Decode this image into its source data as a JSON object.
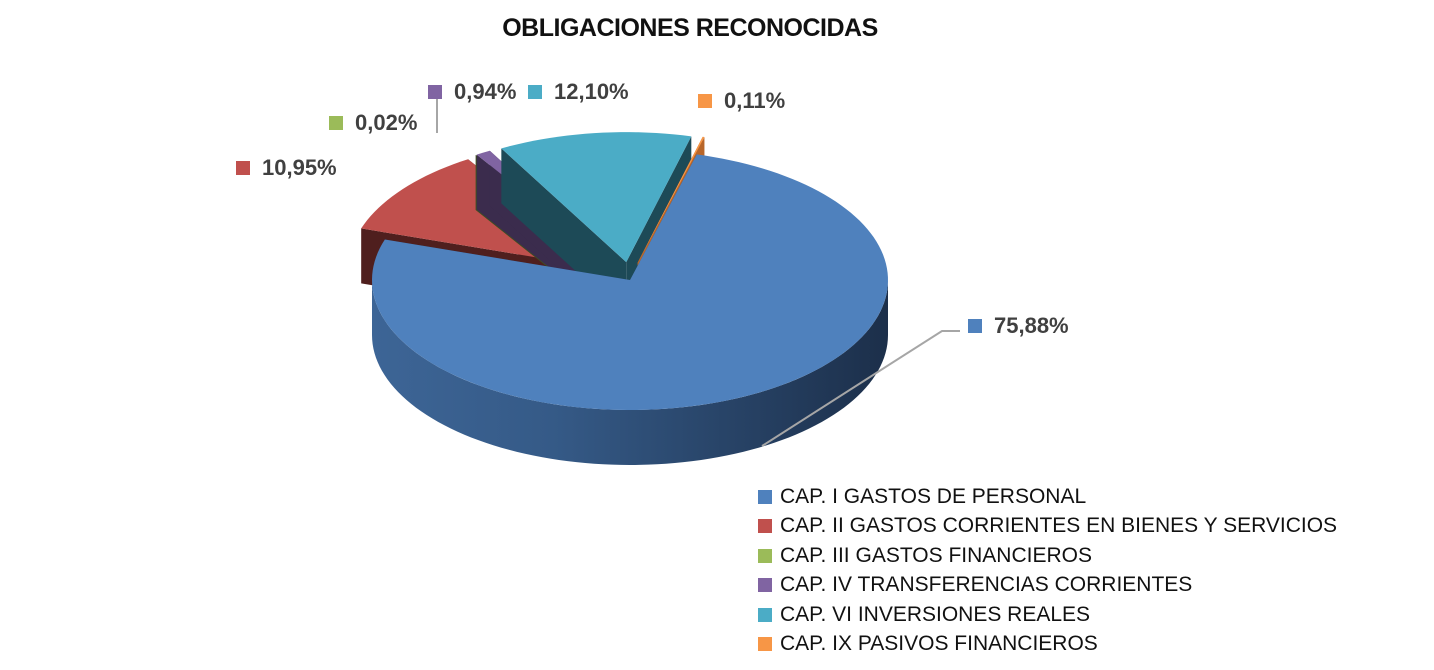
{
  "chart_data": {
    "type": "pie",
    "style": "3d-exploded",
    "title": "OBLIGACIONES RECONOCIDAS",
    "legend_position": "bottom-right",
    "slices": [
      {
        "label": "CAP. I GASTOS DE PERSONAL",
        "value": 75.88,
        "display": "75,88%",
        "color": "#4f81bd",
        "dark": "#243a5c"
      },
      {
        "label": "CAP. II GASTOS CORRIENTES EN BIENES Y SERVICIOS",
        "value": 10.95,
        "display": "10,95%",
        "color": "#c0504d",
        "dark": "#4f1f1e"
      },
      {
        "label": "CAP. III GASTOS FINANCIEROS",
        "value": 0.02,
        "display": "0,02%",
        "color": "#9bbb59",
        "dark": "#3e4f22"
      },
      {
        "label": "CAP. IV TRANSFERENCIAS CORRIENTES",
        "value": 0.94,
        "display": "0,94%",
        "color": "#8064a2",
        "dark": "#3b2c4d"
      },
      {
        "label": "CAP. VI INVERSIONES REALES",
        "value": 12.1,
        "display": "12,10%",
        "color": "#4bacc6",
        "dark": "#1d4a57"
      },
      {
        "label": "CAP. IX PASIVOS FINANCIEROS",
        "value": 0.11,
        "display": "0,11%",
        "color": "#f79646",
        "dark": "#b8662a"
      }
    ]
  }
}
